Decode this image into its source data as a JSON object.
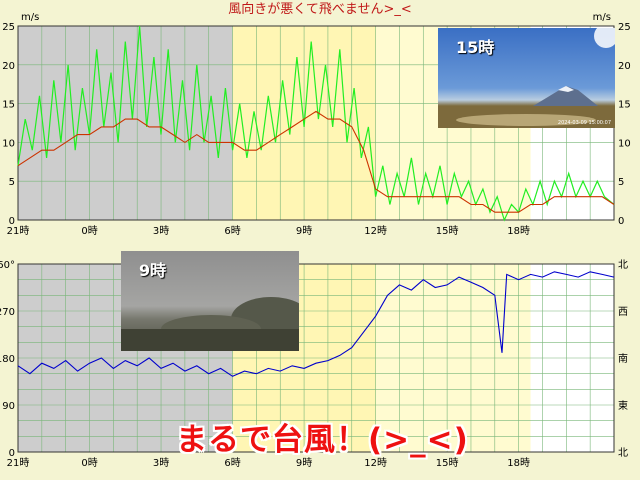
{
  "header": {
    "title": "風向きが悪くて飛べません>_<"
  },
  "caption": "まるで台風！(>_<)",
  "photos": {
    "afternoon": {
      "label": "15時",
      "stamp": "2024-03-09 15:00:07"
    },
    "morning": {
      "label": "9時"
    }
  },
  "colors": {
    "night_bg": "#cdcdcd",
    "day_bg": "#fffbd0",
    "grid": "#79b679",
    "gust": "#22ee22",
    "mean_wind": "#cc3300",
    "direction": "#0000cc"
  },
  "chart_data": [
    {
      "type": "line",
      "name": "wind-speed",
      "yunit": "m/s",
      "yunit_right": "m/s",
      "ylim": [
        0,
        25
      ],
      "yticks": [
        0,
        5,
        10,
        15,
        20,
        25
      ],
      "x_range_hours": [
        21,
        46
      ],
      "xticks": [
        {
          "h": 21,
          "label": "21時"
        },
        {
          "h": 24,
          "label": "0時"
        },
        {
          "h": 27,
          "label": "3時"
        },
        {
          "h": 30,
          "label": "6時"
        },
        {
          "h": 33,
          "label": "9時"
        },
        {
          "h": 36,
          "label": "12時"
        },
        {
          "h": 39,
          "label": "15時"
        },
        {
          "h": 42,
          "label": "18時"
        }
      ],
      "night_spans": [
        [
          21,
          30.0
        ]
      ],
      "shaded_day_spans": [
        [
          30.0,
          36.0
        ]
      ],
      "day_spans": [
        [
          30.0,
          42.5
        ]
      ],
      "series": [
        {
          "id": "gust",
          "values": [
            [
              21.0,
              7
            ],
            [
              21.3,
              13
            ],
            [
              21.6,
              9
            ],
            [
              21.9,
              16
            ],
            [
              22.2,
              8
            ],
            [
              22.5,
              18
            ],
            [
              22.8,
              10
            ],
            [
              23.1,
              20
            ],
            [
              23.4,
              9
            ],
            [
              23.7,
              17
            ],
            [
              24.0,
              11
            ],
            [
              24.3,
              22
            ],
            [
              24.6,
              12
            ],
            [
              24.9,
              19
            ],
            [
              25.2,
              10
            ],
            [
              25.5,
              23
            ],
            [
              25.8,
              13
            ],
            [
              26.1,
              25
            ],
            [
              26.4,
              12
            ],
            [
              26.7,
              21
            ],
            [
              27.0,
              11
            ],
            [
              27.3,
              22
            ],
            [
              27.6,
              10
            ],
            [
              27.9,
              18
            ],
            [
              28.2,
              9
            ],
            [
              28.5,
              20
            ],
            [
              28.8,
              10
            ],
            [
              29.1,
              16
            ],
            [
              29.4,
              8
            ],
            [
              29.7,
              17
            ],
            [
              30.0,
              9
            ],
            [
              30.3,
              15
            ],
            [
              30.6,
              8
            ],
            [
              30.9,
              14
            ],
            [
              31.2,
              9
            ],
            [
              31.5,
              16
            ],
            [
              31.8,
              10
            ],
            [
              32.1,
              18
            ],
            [
              32.4,
              11
            ],
            [
              32.7,
              21
            ],
            [
              33.0,
              12
            ],
            [
              33.3,
              23
            ],
            [
              33.6,
              13
            ],
            [
              33.9,
              20
            ],
            [
              34.2,
              12
            ],
            [
              34.5,
              22
            ],
            [
              34.8,
              10
            ],
            [
              35.1,
              17
            ],
            [
              35.4,
              8
            ],
            [
              35.7,
              12
            ],
            [
              36.0,
              3
            ],
            [
              36.3,
              7
            ],
            [
              36.6,
              2
            ],
            [
              36.9,
              6
            ],
            [
              37.2,
              3
            ],
            [
              37.5,
              8
            ],
            [
              37.8,
              2
            ],
            [
              38.1,
              6
            ],
            [
              38.4,
              3
            ],
            [
              38.7,
              7
            ],
            [
              39.0,
              2
            ],
            [
              39.3,
              6
            ],
            [
              39.6,
              3
            ],
            [
              39.9,
              5
            ],
            [
              40.2,
              2
            ],
            [
              40.5,
              4
            ],
            [
              40.8,
              1
            ],
            [
              41.1,
              3
            ],
            [
              41.4,
              0
            ],
            [
              41.7,
              2
            ],
            [
              42.0,
              1
            ],
            [
              42.3,
              4
            ],
            [
              42.6,
              2
            ],
            [
              42.9,
              5
            ],
            [
              43.2,
              2
            ],
            [
              43.5,
              5
            ],
            [
              43.8,
              3
            ],
            [
              44.1,
              6
            ],
            [
              44.4,
              3
            ],
            [
              44.7,
              5
            ],
            [
              45.0,
              3
            ],
            [
              45.3,
              5
            ],
            [
              45.6,
              3
            ],
            [
              46.0,
              2
            ]
          ]
        },
        {
          "id": "mean",
          "values": [
            [
              21.0,
              7
            ],
            [
              21.5,
              8
            ],
            [
              22.0,
              9
            ],
            [
              22.5,
              9
            ],
            [
              23.0,
              10
            ],
            [
              23.5,
              11
            ],
            [
              24.0,
              11
            ],
            [
              24.5,
              12
            ],
            [
              25.0,
              12
            ],
            [
              25.5,
              13
            ],
            [
              26.0,
              13
            ],
            [
              26.5,
              12
            ],
            [
              27.0,
              12
            ],
            [
              27.5,
              11
            ],
            [
              28.0,
              10
            ],
            [
              28.5,
              11
            ],
            [
              29.0,
              10
            ],
            [
              29.5,
              10
            ],
            [
              30.0,
              10
            ],
            [
              30.5,
              9
            ],
            [
              31.0,
              9
            ],
            [
              31.5,
              10
            ],
            [
              32.0,
              11
            ],
            [
              32.5,
              12
            ],
            [
              33.0,
              13
            ],
            [
              33.5,
              14
            ],
            [
              34.0,
              13
            ],
            [
              34.5,
              13
            ],
            [
              35.0,
              12
            ],
            [
              35.5,
              9
            ],
            [
              36.0,
              4
            ],
            [
              36.5,
              3
            ],
            [
              37.0,
              3
            ],
            [
              37.5,
              3
            ],
            [
              38.0,
              3
            ],
            [
              38.5,
              3
            ],
            [
              39.0,
              3
            ],
            [
              39.5,
              3
            ],
            [
              40.0,
              2
            ],
            [
              40.5,
              2
            ],
            [
              41.0,
              1
            ],
            [
              41.5,
              1
            ],
            [
              42.0,
              1
            ],
            [
              42.5,
              2
            ],
            [
              43.0,
              2
            ],
            [
              43.5,
              3
            ],
            [
              44.0,
              3
            ],
            [
              44.5,
              3
            ],
            [
              45.0,
              3
            ],
            [
              45.5,
              3
            ],
            [
              46.0,
              2
            ]
          ]
        }
      ]
    },
    {
      "type": "line",
      "name": "wind-direction",
      "ylim": [
        0,
        360
      ],
      "yticks": [
        0,
        90,
        180,
        270,
        360
      ],
      "yticks_left_labels": [
        "0",
        "90",
        "180",
        "270",
        "360°"
      ],
      "yticks_right_labels": [
        "北",
        "東",
        "南",
        "西",
        "北"
      ],
      "x_range_hours": [
        21,
        46
      ],
      "xticks": [
        {
          "h": 21,
          "label": "21時"
        },
        {
          "h": 24,
          "label": "0時"
        },
        {
          "h": 27,
          "label": "3時"
        },
        {
          "h": 30,
          "label": "6時"
        },
        {
          "h": 33,
          "label": "9時"
        },
        {
          "h": 36,
          "label": "12時"
        },
        {
          "h": 39,
          "label": "15時"
        },
        {
          "h": 42,
          "label": "18時"
        }
      ],
      "night_spans": [
        [
          21,
          30.0
        ]
      ],
      "shaded_day_spans": [
        [
          30.0,
          36.0
        ]
      ],
      "day_spans": [
        [
          30.0,
          42.5
        ]
      ],
      "series": [
        {
          "id": "direction",
          "values": [
            [
              21.0,
              165
            ],
            [
              21.5,
              150
            ],
            [
              22.0,
              170
            ],
            [
              22.5,
              160
            ],
            [
              23.0,
              175
            ],
            [
              23.5,
              155
            ],
            [
              24.0,
              170
            ],
            [
              24.5,
              180
            ],
            [
              25.0,
              160
            ],
            [
              25.5,
              175
            ],
            [
              26.0,
              165
            ],
            [
              26.5,
              180
            ],
            [
              27.0,
              160
            ],
            [
              27.5,
              170
            ],
            [
              28.0,
              155
            ],
            [
              28.5,
              165
            ],
            [
              29.0,
              150
            ],
            [
              29.5,
              160
            ],
            [
              30.0,
              145
            ],
            [
              30.5,
              155
            ],
            [
              31.0,
              150
            ],
            [
              31.5,
              160
            ],
            [
              32.0,
              155
            ],
            [
              32.5,
              165
            ],
            [
              33.0,
              160
            ],
            [
              33.5,
              170
            ],
            [
              34.0,
              175
            ],
            [
              34.5,
              185
            ],
            [
              35.0,
              200
            ],
            [
              35.5,
              230
            ],
            [
              36.0,
              260
            ],
            [
              36.5,
              300
            ],
            [
              37.0,
              320
            ],
            [
              37.5,
              310
            ],
            [
              38.0,
              330
            ],
            [
              38.5,
              315
            ],
            [
              39.0,
              320
            ],
            [
              39.5,
              335
            ],
            [
              40.0,
              325
            ],
            [
              40.5,
              315
            ],
            [
              41.0,
              300
            ],
            [
              41.3,
              190
            ],
            [
              41.5,
              340
            ],
            [
              42.0,
              330
            ],
            [
              42.5,
              340
            ],
            [
              43.0,
              335
            ],
            [
              43.5,
              345
            ],
            [
              44.0,
              340
            ],
            [
              44.5,
              335
            ],
            [
              45.0,
              345
            ],
            [
              45.5,
              340
            ],
            [
              46.0,
              335
            ]
          ]
        }
      ]
    }
  ]
}
